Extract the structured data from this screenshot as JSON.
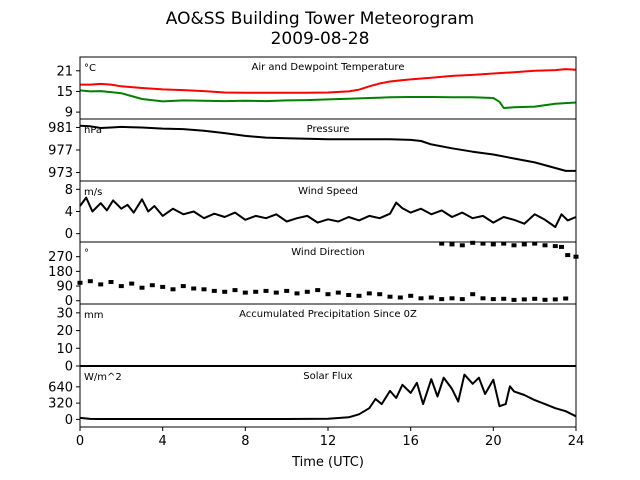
{
  "figure": {
    "title_line1": "AO&SS Building Tower Meteorogram",
    "title_line2": "2009-08-28"
  },
  "chart_data": [
    {
      "type": "line",
      "title": "Air and Dewpoint Temperature",
      "unit": "°C",
      "xlim": [
        0,
        24
      ],
      "ylim": [
        7,
        25
      ],
      "yticks": [
        9,
        15,
        21
      ],
      "series": [
        {
          "color": "#ff0000",
          "x": [
            0,
            0.5,
            1,
            1.5,
            2,
            3,
            4,
            5,
            6,
            7,
            8,
            9,
            10,
            11,
            12,
            13,
            13.5,
            14,
            14.5,
            15,
            15.5,
            16,
            17,
            18,
            19,
            20,
            21,
            22,
            23,
            23.5,
            24
          ],
          "values": [
            17.0,
            17.0,
            17.2,
            17.0,
            16.5,
            16.0,
            15.6,
            15.4,
            15.1,
            14.7,
            14.6,
            14.6,
            14.6,
            14.6,
            14.7,
            15.0,
            15.5,
            16.5,
            17.3,
            17.9,
            18.2,
            18.5,
            19.0,
            19.5,
            19.8,
            20.2,
            20.6,
            21.0,
            21.2,
            21.5,
            21.3
          ]
        },
        {
          "color": "#008000",
          "x": [
            0,
            0.5,
            1,
            1.5,
            2,
            3,
            4,
            5,
            6,
            7,
            8,
            9,
            10,
            11,
            12,
            13,
            14,
            15,
            16,
            17,
            18,
            19,
            20,
            20.3,
            20.5,
            21,
            22,
            23,
            24
          ],
          "values": [
            15.3,
            15.0,
            15.1,
            14.8,
            14.5,
            12.8,
            12.1,
            12.4,
            12.3,
            12.2,
            12.3,
            12.2,
            12.4,
            12.5,
            12.7,
            12.9,
            13.1,
            13.3,
            13.4,
            13.4,
            13.3,
            13.3,
            13.1,
            12.0,
            10.2,
            10.4,
            10.6,
            11.4,
            11.8
          ]
        }
      ]
    },
    {
      "type": "line",
      "title": "Pressure",
      "unit": "hPa",
      "xlim": [
        0,
        24
      ],
      "ylim": [
        971.5,
        982.5
      ],
      "yticks": [
        973,
        977,
        981
      ],
      "series": [
        {
          "color": "#000000",
          "x": [
            0,
            0.5,
            1,
            1.5,
            2,
            3,
            4,
            5,
            6,
            7,
            8,
            9,
            10,
            11,
            12,
            13,
            14,
            15,
            16,
            16.5,
            17,
            18,
            19,
            20,
            21,
            22,
            23,
            23.5,
            24
          ],
          "values": [
            981.3,
            981.2,
            980.9,
            981.0,
            981.1,
            981.0,
            980.8,
            980.7,
            980.4,
            980.0,
            979.5,
            979.2,
            979.1,
            979.0,
            978.9,
            978.9,
            978.9,
            978.9,
            978.8,
            978.6,
            978.0,
            977.3,
            976.7,
            976.2,
            975.5,
            974.8,
            973.8,
            973.3,
            973.3
          ]
        }
      ]
    },
    {
      "type": "line",
      "title": "Wind Speed",
      "unit": "m/s",
      "xlim": [
        0,
        24
      ],
      "ylim": [
        -1.5,
        9.5
      ],
      "yticks": [
        0,
        4,
        8
      ],
      "series": [
        {
          "color": "#000000",
          "x": [
            0,
            0.3,
            0.6,
            1,
            1.3,
            1.6,
            2,
            2.3,
            2.6,
            3,
            3.3,
            3.6,
            4,
            4.5,
            5,
            5.5,
            6,
            6.5,
            7,
            7.5,
            8,
            8.5,
            9,
            9.5,
            10,
            10.5,
            11,
            11.5,
            12,
            12.5,
            13,
            13.5,
            14,
            14.5,
            15,
            15.3,
            15.6,
            16,
            16.5,
            17,
            17.5,
            18,
            18.5,
            19,
            19.5,
            20,
            20.5,
            21,
            21.5,
            22,
            22.5,
            23,
            23.3,
            23.6,
            24
          ],
          "values": [
            5.0,
            6.5,
            4.0,
            5.5,
            4.2,
            6.0,
            4.5,
            5.2,
            3.8,
            6.2,
            4.0,
            5.0,
            3.2,
            4.5,
            3.5,
            4.0,
            2.8,
            3.6,
            3.0,
            3.8,
            2.5,
            3.2,
            2.8,
            3.5,
            2.2,
            2.8,
            3.2,
            2.0,
            2.6,
            2.2,
            3.0,
            2.4,
            3.2,
            2.8,
            3.6,
            5.6,
            4.6,
            3.8,
            4.5,
            3.5,
            4.2,
            3.0,
            3.8,
            2.8,
            3.2,
            2.0,
            3.0,
            2.5,
            1.8,
            3.5,
            2.5,
            1.2,
            3.5,
            2.4,
            3.0
          ]
        }
      ]
    },
    {
      "type": "scatter",
      "title": "Wind Direction",
      "unit": "°",
      "xlim": [
        0,
        24
      ],
      "ylim": [
        -20,
        360
      ],
      "yticks": [
        0,
        90,
        180,
        270
      ],
      "series": [
        {
          "color": "#000000",
          "x": [
            0,
            0.5,
            1,
            1.5,
            2,
            2.5,
            3,
            3.5,
            4,
            4.5,
            5,
            5.5,
            6,
            6.5,
            7,
            7.5,
            8,
            8.5,
            9,
            9.5,
            10,
            10.5,
            11,
            11.5,
            12,
            12.5,
            13,
            13.5,
            14,
            14.5,
            15,
            15.5,
            16,
            16.5,
            17,
            17.5,
            18,
            18.5,
            19,
            19.5,
            20,
            20.5,
            21,
            21.5,
            22,
            22.5,
            23,
            23.5
          ],
          "values": [
            110,
            120,
            100,
            115,
            90,
            105,
            80,
            95,
            85,
            70,
            90,
            75,
            70,
            60,
            55,
            65,
            50,
            55,
            60,
            50,
            60,
            45,
            55,
            65,
            40,
            50,
            35,
            30,
            45,
            40,
            25,
            20,
            30,
            15,
            20,
            10,
            15,
            10,
            40,
            15,
            10,
            12,
            5,
            8,
            12,
            6,
            8,
            14
          ]
        },
        {
          "color": "#000000",
          "x": [
            17.5,
            18,
            18.5,
            19,
            19.5,
            20,
            20.5,
            21,
            21.5,
            22,
            22.5,
            23,
            23.3,
            23.6,
            24
          ],
          "values": [
            350,
            345,
            340,
            355,
            350,
            345,
            350,
            340,
            345,
            350,
            340,
            335,
            330,
            280,
            270
          ]
        }
      ]
    },
    {
      "type": "line",
      "title": "Accumulated Precipitation Since 0Z",
      "unit": "mm",
      "xlim": [
        0,
        24
      ],
      "ylim": [
        0,
        35
      ],
      "yticks": [
        0,
        10,
        20,
        30
      ],
      "series": [
        {
          "color": "#000000",
          "x": [
            0,
            24
          ],
          "values": [
            0,
            0
          ]
        }
      ]
    },
    {
      "type": "line",
      "title": "Solar Flux",
      "unit": "W/m^2",
      "xlim": [
        0,
        24
      ],
      "ylim": [
        -150,
        1050
      ],
      "yticks": [
        0,
        320,
        640
      ],
      "xlabel": "Time (UTC)",
      "xticks": [
        0,
        4,
        8,
        12,
        16,
        20,
        24
      ],
      "series": [
        {
          "color": "#000000",
          "x": [
            0,
            0.5,
            1,
            2,
            4,
            6,
            8,
            10,
            12,
            13,
            13.5,
            14,
            14.3,
            14.6,
            15,
            15.3,
            15.6,
            16,
            16.3,
            16.6,
            17,
            17.3,
            17.6,
            18,
            18.3,
            18.6,
            19,
            19.3,
            19.6,
            20,
            20.3,
            20.6,
            20.8,
            21,
            21.5,
            22,
            22.5,
            23,
            23.5,
            24
          ],
          "values": [
            30,
            10,
            8,
            8,
            8,
            8,
            8,
            8,
            12,
            40,
            100,
            220,
            400,
            300,
            560,
            420,
            680,
            520,
            720,
            300,
            790,
            450,
            820,
            600,
            350,
            880,
            700,
            820,
            500,
            780,
            260,
            300,
            650,
            550,
            480,
            380,
            300,
            220,
            160,
            60
          ]
        }
      ]
    }
  ]
}
